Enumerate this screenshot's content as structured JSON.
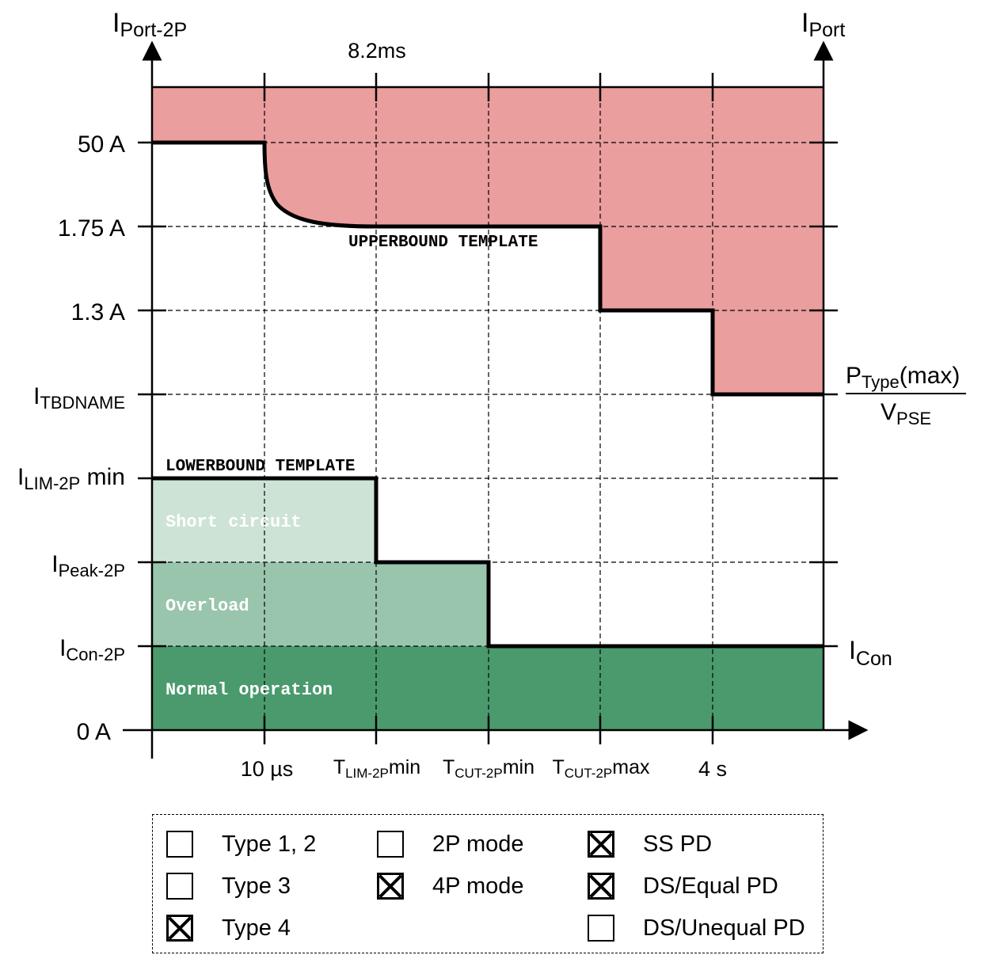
{
  "axes": {
    "left_axis_label": {
      "main": "I",
      "sub": "Port-2P"
    },
    "right_axis_label": {
      "main": "I",
      "sub": "Port"
    },
    "top_time_label": "8.2ms"
  },
  "y_ticks": [
    {
      "main": "50 A",
      "sub": ""
    },
    {
      "main": "1.75 A",
      "sub": ""
    },
    {
      "main": "1.3 A",
      "sub": ""
    },
    {
      "main": "I",
      "sub": "TBDNAME",
      "suffix": ""
    },
    {
      "main": "I",
      "sub": "LIM-2P",
      "suffix": " min"
    },
    {
      "main": "I",
      "sub": "Peak-2P",
      "suffix": ""
    },
    {
      "main": "I",
      "sub": "Con-2P",
      "suffix": ""
    },
    {
      "main": "0 A",
      "sub": ""
    }
  ],
  "x_ticks": [
    {
      "main": "10 µs",
      "sub": "",
      "suffix": ""
    },
    {
      "main": "T",
      "sub": "LIM-2P",
      "suffix": "min"
    },
    {
      "main": "T",
      "sub": "CUT-2P",
      "suffix": "min"
    },
    {
      "main": "T",
      "sub": "CUT-2P",
      "suffix": "max"
    },
    {
      "main": "4 s",
      "sub": "",
      "suffix": ""
    }
  ],
  "right_labels": {
    "fraction_num": {
      "main": "P",
      "sub": "Type",
      "suffix": "(max)"
    },
    "fraction_den": {
      "main": "V",
      "sub": "PSE"
    },
    "icon": {
      "main": "I",
      "sub": "Con"
    }
  },
  "templates": {
    "upper": "UPPERBOUND TEMPLATE",
    "lower": "LOWERBOUND TEMPLATE"
  },
  "regions": {
    "short_circuit": "Short circuit",
    "overload": "Overload",
    "normal": "Normal operation"
  },
  "colors": {
    "upper_region": "#ea9e9e",
    "short_circuit": "#cde3d6",
    "overload": "#99c5ad",
    "normal": "#4a9a6d"
  },
  "legend": {
    "col1": [
      {
        "label": "Type 1, 2",
        "checked": false
      },
      {
        "label": "Type 3",
        "checked": false
      },
      {
        "label": "Type 4",
        "checked": true
      }
    ],
    "col2": [
      {
        "label": "2P mode",
        "checked": false
      },
      {
        "label": "4P mode",
        "checked": true
      }
    ],
    "col3": [
      {
        "label": "SS PD",
        "checked": true
      },
      {
        "label": "DS/Equal PD",
        "checked": true
      },
      {
        "label": "DS/Unequal PD",
        "checked": false
      }
    ]
  }
}
